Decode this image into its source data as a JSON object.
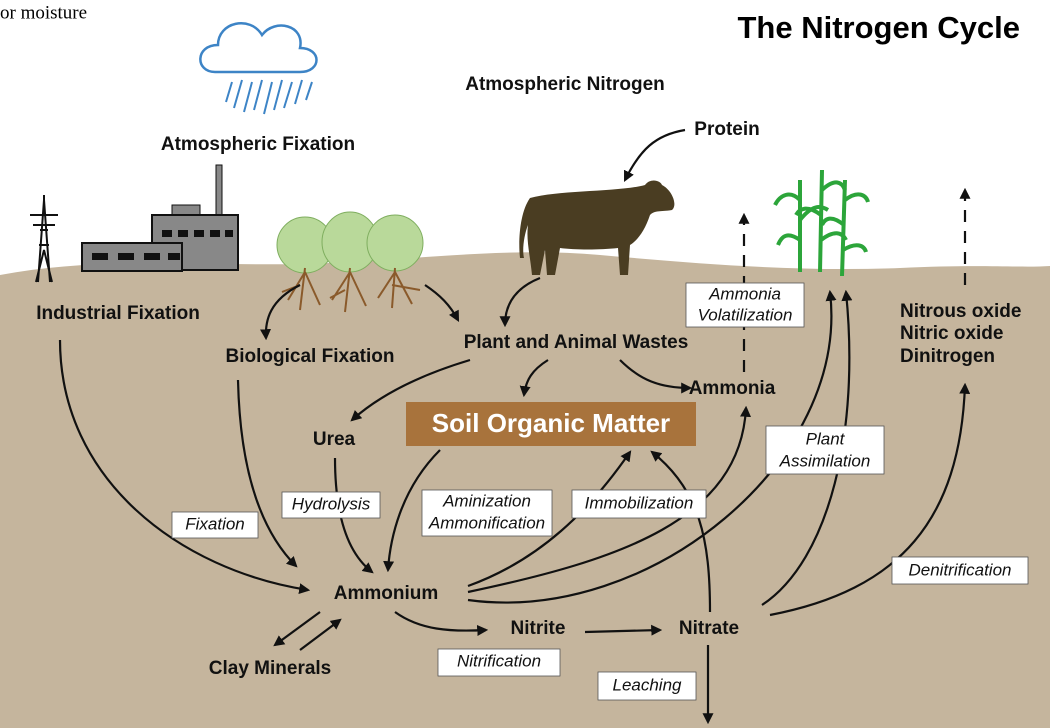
{
  "caption_fragment": "or moisture",
  "title": "The Nitrogen Cycle",
  "pools": {
    "atmospheric_nitrogen": "Atmospheric Nitrogen",
    "protein": "Protein",
    "industrial_fixation": "Industrial Fixation",
    "atmospheric_fixation": "Atmospheric Fixation",
    "biological_fixation": "Biological Fixation",
    "wastes": "Plant and Animal Wastes",
    "gases": [
      "Nitrous oxide",
      "Nitric oxide",
      "Dinitrogen"
    ],
    "ammonia": "Ammonia",
    "soil_organic_matter": "Soil Organic Matter",
    "urea": "Urea",
    "ammonium": "Ammonium",
    "nitrite": "Nitrite",
    "nitrate": "Nitrate",
    "clay_minerals": "Clay Minerals"
  },
  "processes": {
    "volatilization": [
      "Ammonia",
      "Volatilization"
    ],
    "plant_assimilation": [
      "Plant",
      "Assimilation"
    ],
    "hydrolysis": [
      "Hydrolysis"
    ],
    "aminization": [
      "Aminization",
      "Ammonification"
    ],
    "immobilization": [
      "Immobilization"
    ],
    "fixation": [
      "Fixation"
    ],
    "denitrification": [
      "Denitrification"
    ],
    "nitrification": [
      "Nitrification"
    ],
    "leaching": [
      "Leaching"
    ]
  }
}
